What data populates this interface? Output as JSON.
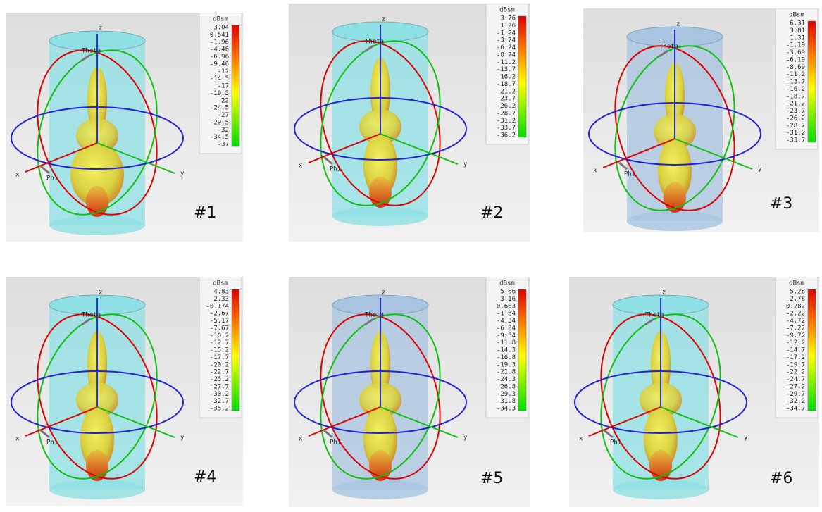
{
  "panels": [
    {
      "label": "#1",
      "unit": "dBsm",
      "axes": {
        "z": "z",
        "theta": "Theta",
        "x": "x",
        "phi": "Phi",
        "y": "y"
      },
      "scale": [
        "3.04",
        "0.541",
        "-1.96",
        "-4.46",
        "-6.96",
        "-9.46",
        "-12",
        "-14.5",
        "-17",
        "-19.5",
        "-22",
        "-24.5",
        "-27",
        "-29.5",
        "-32",
        "-34.5",
        "-37"
      ]
    },
    {
      "label": "#2",
      "unit": "dBsm",
      "axes": {
        "z": "z",
        "theta": "Theta",
        "x": "x",
        "phi": "Phi",
        "y": "y"
      },
      "scale": [
        "3.76",
        "1.26",
        "-1.24",
        "-3.74",
        "-6.24",
        "-8.74",
        "-11.2",
        "-13.7",
        "-16.2",
        "-18.7",
        "-21.2",
        "-23.7",
        "-26.2",
        "-28.7",
        "-31.2",
        "-33.7",
        "-36.2"
      ]
    },
    {
      "label": "#3",
      "unit": "dBsm",
      "axes": {
        "z": "z",
        "theta": "Theta",
        "x": "x",
        "phi": "Phi",
        "y": "y"
      },
      "scale": [
        "6.31",
        "3.81",
        "1.31",
        "-1.19",
        "-3.69",
        "-6.19",
        "-8.69",
        "-11.2",
        "-13.7",
        "-16.2",
        "-18.7",
        "-21.2",
        "-23.7",
        "-26.2",
        "-28.7",
        "-31.2",
        "-33.7"
      ]
    },
    {
      "label": "#4",
      "unit": "dBsm",
      "axes": {
        "z": "z",
        "theta": "Theta",
        "x": "x",
        "phi": "Phi",
        "y": "y"
      },
      "scale": [
        "4.83",
        "2.33",
        "-0.174",
        "-2.67",
        "-5.17",
        "-7.67",
        "-10.2",
        "-12.7",
        "-15.2",
        "-17.7",
        "-20.2",
        "-22.7",
        "-25.2",
        "-27.7",
        "-30.2",
        "-32.7",
        "-35.2"
      ]
    },
    {
      "label": "#5",
      "unit": "dBsm",
      "axes": {
        "z": "z",
        "theta": "Theta",
        "x": "x",
        "phi": "Phi",
        "y": "y"
      },
      "scale": [
        "5.66",
        "3.16",
        "0.663",
        "-1.84",
        "-4.34",
        "-6.84",
        "-9.34",
        "-11.8",
        "-14.3",
        "-16.8",
        "-19.3",
        "-21.8",
        "-24.3",
        "-26.8",
        "-29.3",
        "-31.8",
        "-34.3"
      ]
    },
    {
      "label": "#6",
      "unit": "dBsm",
      "axes": {
        "z": "z",
        "theta": "Theta",
        "x": "x",
        "phi": "Phi",
        "y": "y"
      },
      "scale": [
        "5.28",
        "2.78",
        "0.282",
        "-2.22",
        "-4.72",
        "-7.22",
        "-9.72",
        "-12.2",
        "-14.7",
        "-17.2",
        "-19.7",
        "-22.2",
        "-24.7",
        "-27.2",
        "-29.7",
        "-32.2",
        "-34.7"
      ]
    }
  ]
}
